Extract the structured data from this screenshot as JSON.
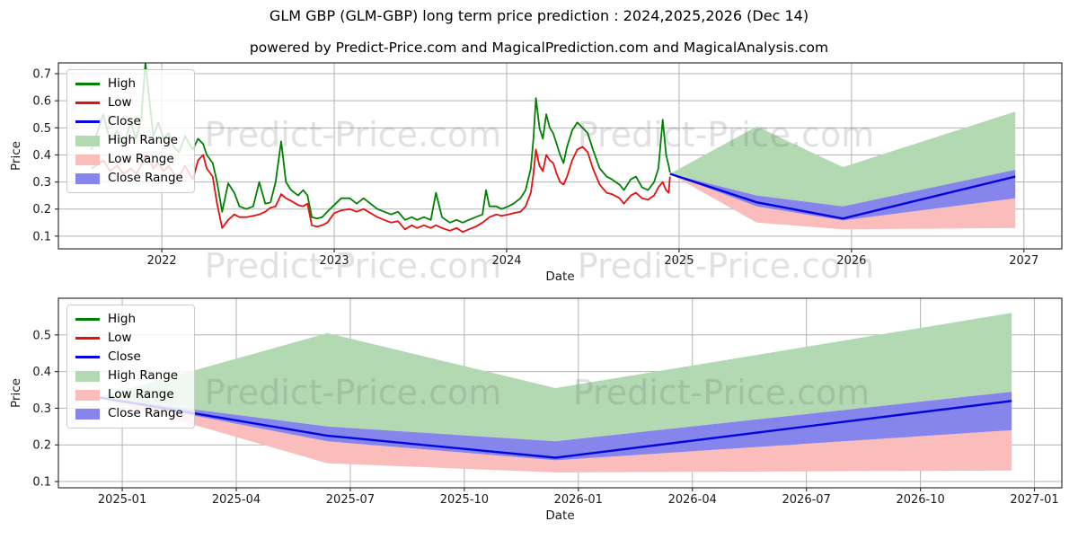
{
  "title": "GLM GBP (GLM-GBP) long term price prediction : 2024,2025,2026 (Dec 14)",
  "subtitle": "powered by Predict-Price.com and MagicalPrediction.com and MagicalAnalysis.com",
  "watermark": {
    "text": "Predict-Price.com"
  },
  "colors": {
    "high": "#008000",
    "low": "#e51010",
    "close": "#0505dd",
    "high_range": "#b3d9b3",
    "low_range": "#fbbcbc",
    "close_range": "#8585ec",
    "grid": "#b3b3b3",
    "frame": "#333333",
    "tick_text": "#1a1a1a"
  },
  "legend": {
    "items": [
      {
        "label": "High",
        "type": "line",
        "color_key": "high"
      },
      {
        "label": "Low",
        "type": "line",
        "color_key": "low"
      },
      {
        "label": "Close",
        "type": "line",
        "color_key": "close"
      },
      {
        "label": "High Range",
        "type": "patch",
        "color_key": "high_range"
      },
      {
        "label": "Low Range",
        "type": "patch",
        "color_key": "low_range"
      },
      {
        "label": "Close Range",
        "type": "patch",
        "color_key": "close_range"
      }
    ]
  },
  "chart_data": [
    {
      "type": "line",
      "name": "long-term-history-and-prediction",
      "xlabel": "Date",
      "ylabel": "Price",
      "xlim": [
        2021.4,
        2027.22
      ],
      "ylim": [
        0.053,
        0.74
      ],
      "grid": true,
      "legend_position": "upper-left",
      "x_tick_values": [
        2022,
        2023,
        2024,
        2025,
        2026,
        2027
      ],
      "x_tick_labels": [
        "2022",
        "2023",
        "2024",
        "2025",
        "2026",
        "2027"
      ],
      "y_tick_values": [
        0.1,
        0.2,
        0.3,
        0.4,
        0.5,
        0.6,
        0.7
      ],
      "y_tick_labels": [
        "0.1",
        "0.2",
        "0.3",
        "0.4",
        "0.5",
        "0.6",
        "0.7"
      ],
      "history": {
        "comment": "GLM-GBP daily high/low, approx values read from chart, dates as decimal years",
        "points": [
          [
            2021.59,
            0.42,
            0.35
          ],
          [
            2021.62,
            0.47,
            0.36
          ],
          [
            2021.66,
            0.55,
            0.38
          ],
          [
            2021.7,
            0.45,
            0.34
          ],
          [
            2021.74,
            0.49,
            0.36
          ],
          [
            2021.78,
            0.44,
            0.33
          ],
          [
            2021.82,
            0.52,
            0.35
          ],
          [
            2021.85,
            0.46,
            0.33
          ],
          [
            2021.88,
            0.53,
            0.36
          ],
          [
            2021.905,
            0.74,
            0.4
          ],
          [
            2021.93,
            0.59,
            0.38
          ],
          [
            2021.95,
            0.47,
            0.35
          ],
          [
            2021.98,
            0.52,
            0.37
          ],
          [
            2022.01,
            0.46,
            0.34
          ],
          [
            2022.04,
            0.48,
            0.36
          ],
          [
            2022.07,
            0.43,
            0.33
          ],
          [
            2022.1,
            0.41,
            0.32
          ],
          [
            2022.135,
            0.47,
            0.36
          ],
          [
            2022.16,
            0.44,
            0.33
          ],
          [
            2022.18,
            0.42,
            0.31
          ],
          [
            2022.21,
            0.46,
            0.38
          ],
          [
            2022.24,
            0.44,
            0.4
          ],
          [
            2022.26,
            0.4,
            0.35
          ],
          [
            2022.295,
            0.37,
            0.32
          ],
          [
            2022.32,
            0.3,
            0.22
          ],
          [
            2022.35,
            0.19,
            0.13
          ],
          [
            2022.385,
            0.295,
            0.16
          ],
          [
            2022.42,
            0.26,
            0.18
          ],
          [
            2022.45,
            0.21,
            0.17
          ],
          [
            2022.49,
            0.2,
            0.17
          ],
          [
            2022.53,
            0.21,
            0.175
          ],
          [
            2022.565,
            0.3,
            0.18
          ],
          [
            2022.6,
            0.22,
            0.19
          ],
          [
            2022.63,
            0.225,
            0.205
          ],
          [
            2022.66,
            0.3,
            0.21
          ],
          [
            2022.692,
            0.45,
            0.255
          ],
          [
            2022.72,
            0.3,
            0.24
          ],
          [
            2022.75,
            0.27,
            0.23
          ],
          [
            2022.79,
            0.25,
            0.215
          ],
          [
            2022.82,
            0.27,
            0.21
          ],
          [
            2022.845,
            0.25,
            0.22
          ],
          [
            2022.87,
            0.17,
            0.14
          ],
          [
            2022.9,
            0.165,
            0.135
          ],
          [
            2022.93,
            0.17,
            0.14
          ],
          [
            2022.96,
            0.19,
            0.15
          ],
          [
            2023.0,
            0.215,
            0.185
          ],
          [
            2023.04,
            0.24,
            0.195
          ],
          [
            2023.09,
            0.24,
            0.2
          ],
          [
            2023.13,
            0.22,
            0.19
          ],
          [
            2023.17,
            0.24,
            0.2
          ],
          [
            2023.21,
            0.22,
            0.185
          ],
          [
            2023.25,
            0.2,
            0.17
          ],
          [
            2023.29,
            0.19,
            0.16
          ],
          [
            2023.33,
            0.18,
            0.15
          ],
          [
            2023.37,
            0.19,
            0.155
          ],
          [
            2023.41,
            0.16,
            0.125
          ],
          [
            2023.45,
            0.17,
            0.14
          ],
          [
            2023.48,
            0.16,
            0.13
          ],
          [
            2023.52,
            0.17,
            0.14
          ],
          [
            2023.56,
            0.16,
            0.13
          ],
          [
            2023.59,
            0.26,
            0.14
          ],
          [
            2023.625,
            0.17,
            0.13
          ],
          [
            2023.67,
            0.15,
            0.12
          ],
          [
            2023.71,
            0.16,
            0.13
          ],
          [
            2023.745,
            0.15,
            0.115
          ],
          [
            2023.78,
            0.16,
            0.125
          ],
          [
            2023.82,
            0.17,
            0.135
          ],
          [
            2023.86,
            0.18,
            0.15
          ],
          [
            2023.88,
            0.27,
            0.16
          ],
          [
            2023.9,
            0.21,
            0.17
          ],
          [
            2023.94,
            0.21,
            0.18
          ],
          [
            2023.97,
            0.2,
            0.175
          ],
          [
            2024.01,
            0.21,
            0.18
          ],
          [
            2024.04,
            0.22,
            0.185
          ],
          [
            2024.08,
            0.24,
            0.19
          ],
          [
            2024.11,
            0.27,
            0.21
          ],
          [
            2024.14,
            0.35,
            0.26
          ],
          [
            2024.155,
            0.46,
            0.33
          ],
          [
            2024.17,
            0.61,
            0.42
          ],
          [
            2024.19,
            0.5,
            0.36
          ],
          [
            2024.21,
            0.46,
            0.34
          ],
          [
            2024.23,
            0.55,
            0.4
          ],
          [
            2024.25,
            0.5,
            0.38
          ],
          [
            2024.27,
            0.48,
            0.37
          ],
          [
            2024.29,
            0.44,
            0.33
          ],
          [
            2024.31,
            0.4,
            0.3
          ],
          [
            2024.33,
            0.37,
            0.29
          ],
          [
            2024.35,
            0.43,
            0.32
          ],
          [
            2024.38,
            0.49,
            0.38
          ],
          [
            2024.41,
            0.52,
            0.42
          ],
          [
            2024.44,
            0.5,
            0.43
          ],
          [
            2024.47,
            0.48,
            0.41
          ],
          [
            2024.5,
            0.42,
            0.35
          ],
          [
            2024.54,
            0.35,
            0.29
          ],
          [
            2024.58,
            0.32,
            0.26
          ],
          [
            2024.61,
            0.31,
            0.255
          ],
          [
            2024.655,
            0.29,
            0.24
          ],
          [
            2024.68,
            0.27,
            0.22
          ],
          [
            2024.72,
            0.31,
            0.25
          ],
          [
            2024.75,
            0.32,
            0.26
          ],
          [
            2024.785,
            0.28,
            0.24
          ],
          [
            2024.82,
            0.27,
            0.235
          ],
          [
            2024.855,
            0.3,
            0.25
          ],
          [
            2024.88,
            0.35,
            0.28
          ],
          [
            2024.905,
            0.53,
            0.3
          ],
          [
            2024.925,
            0.4,
            0.27
          ],
          [
            2024.94,
            0.36,
            0.26
          ],
          [
            2024.947,
            0.335,
            0.32
          ]
        ]
      },
      "prediction": {
        "dates": [
          2024.947,
          2025.45,
          2025.95,
          2026.95
        ],
        "date_labels": [
          "2024-12-14",
          "2025-06-14",
          "2025-12-14",
          "2026-12-14"
        ],
        "close": [
          0.33,
          0.225,
          0.165,
          0.32
        ],
        "close_range_top": [
          0.33,
          0.25,
          0.21,
          0.345
        ],
        "close_range_bottom": [
          0.33,
          0.21,
          0.158,
          0.24
        ],
        "high_range_top": [
          0.33,
          0.505,
          0.355,
          0.56
        ],
        "low_range_bottom": [
          0.33,
          0.15,
          0.125,
          0.13
        ]
      }
    },
    {
      "type": "line",
      "name": "prediction-detail",
      "xlabel": "Date",
      "ylabel": "Price",
      "xlim": [
        2024.86,
        2027.06
      ],
      "ylim": [
        0.083,
        0.6
      ],
      "grid": true,
      "legend_position": "upper-left",
      "x_tick_values": [
        2025.0,
        2025.25,
        2025.5,
        2025.75,
        2026.0,
        2026.25,
        2026.5,
        2026.75,
        2027.0
      ],
      "x_tick_labels": [
        "2025-01",
        "2025-04",
        "2025-07",
        "2025-10",
        "2026-01",
        "2026-04",
        "2026-07",
        "2026-10",
        "2027-01"
      ],
      "y_tick_values": [
        0.1,
        0.2,
        0.3,
        0.4,
        0.5
      ],
      "y_tick_labels": [
        "0.1",
        "0.2",
        "0.3",
        "0.4",
        "0.5"
      ],
      "prediction": {
        "dates": [
          2024.947,
          2025.45,
          2025.95,
          2026.95
        ],
        "date_labels": [
          "2024-12-14",
          "2025-06-14",
          "2025-12-14",
          "2026-12-14"
        ],
        "close": [
          0.33,
          0.225,
          0.165,
          0.32
        ],
        "close_range_top": [
          0.33,
          0.25,
          0.21,
          0.345
        ],
        "close_range_bottom": [
          0.33,
          0.21,
          0.158,
          0.24
        ],
        "high_range_top": [
          0.33,
          0.505,
          0.355,
          0.56
        ],
        "low_range_bottom": [
          0.33,
          0.15,
          0.125,
          0.13
        ]
      }
    }
  ]
}
